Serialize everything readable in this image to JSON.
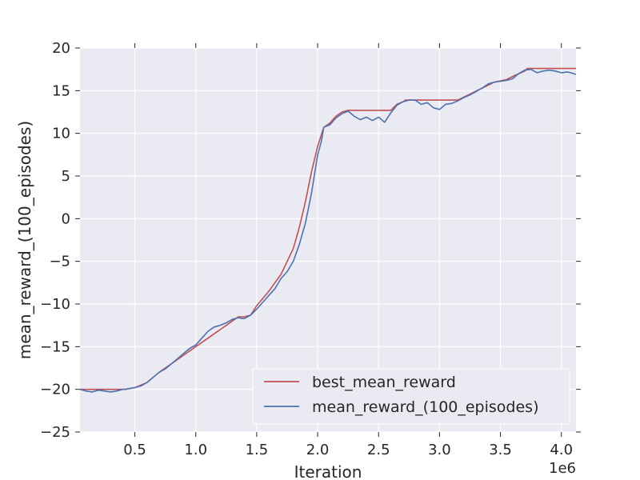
{
  "chart_data": {
    "type": "line",
    "xlabel": "Iteration",
    "ylabel": "mean_reward_(100_episodes)",
    "x_multiplier_label": "1e6",
    "xlim": [
      0.05,
      4.12
    ],
    "ylim": [
      -25,
      20
    ],
    "x_ticks": [
      0.5,
      1.0,
      1.5,
      2.0,
      2.5,
      3.0,
      3.5,
      4.0
    ],
    "x_tick_labels": [
      "0.5",
      "1.0",
      "1.5",
      "2.0",
      "2.5",
      "3.0",
      "3.5",
      "4.0"
    ],
    "y_ticks": [
      -25,
      -20,
      -15,
      -10,
      -5,
      0,
      5,
      10,
      15,
      20
    ],
    "y_tick_labels": [
      "−25",
      "−20",
      "−15",
      "−10",
      "−5",
      "0",
      "5",
      "10",
      "15",
      "20"
    ],
    "grid": true,
    "legend_position": "lower-right",
    "series": [
      {
        "name": "best_mean_reward",
        "color": "#c44e52",
        "x": [
          0.05,
          0.3,
          0.3,
          0.42,
          0.42,
          0.5,
          0.6,
          0.7,
          0.8,
          0.9,
          1.0,
          1.1,
          1.2,
          1.3,
          1.35,
          1.4,
          1.45,
          1.5,
          1.6,
          1.7,
          1.8,
          1.85,
          1.9,
          1.95,
          2.0,
          2.05,
          2.1,
          2.15,
          2.2,
          2.25,
          2.6,
          2.65,
          2.7,
          2.72,
          3.15,
          3.18,
          3.25,
          3.35,
          3.45,
          3.55,
          3.62,
          3.7,
          3.72,
          4.12
        ],
        "y": [
          -20.0,
          -20.0,
          -20.0,
          -20.0,
          -20.0,
          -19.8,
          -19.2,
          -18.0,
          -17.0,
          -16.0,
          -15.0,
          -14.0,
          -13.0,
          -12.0,
          -11.5,
          -11.5,
          -11.3,
          -10.2,
          -8.5,
          -6.5,
          -3.5,
          -1.0,
          2.0,
          5.5,
          8.5,
          10.7,
          11.2,
          12.0,
          12.5,
          12.7,
          12.7,
          13.4,
          13.7,
          13.9,
          13.9,
          14.1,
          14.6,
          15.3,
          16.0,
          16.3,
          16.8,
          17.3,
          17.6,
          17.6
        ]
      },
      {
        "name": "mean_reward_(100_episodes)",
        "color": "#4c72b0",
        "x": [
          0.05,
          0.1,
          0.15,
          0.2,
          0.25,
          0.3,
          0.35,
          0.4,
          0.42,
          0.5,
          0.55,
          0.6,
          0.65,
          0.7,
          0.75,
          0.8,
          0.85,
          0.9,
          0.95,
          1.0,
          1.05,
          1.1,
          1.15,
          1.2,
          1.25,
          1.3,
          1.35,
          1.38,
          1.4,
          1.45,
          1.5,
          1.55,
          1.6,
          1.65,
          1.7,
          1.75,
          1.8,
          1.85,
          1.9,
          1.95,
          2.0,
          2.03,
          2.05,
          2.1,
          2.15,
          2.2,
          2.25,
          2.3,
          2.35,
          2.4,
          2.45,
          2.5,
          2.55,
          2.6,
          2.65,
          2.7,
          2.75,
          2.8,
          2.85,
          2.9,
          2.95,
          3.0,
          3.05,
          3.1,
          3.15,
          3.2,
          3.25,
          3.3,
          3.35,
          3.4,
          3.45,
          3.5,
          3.55,
          3.6,
          3.65,
          3.7,
          3.75,
          3.8,
          3.85,
          3.9,
          3.95,
          4.0,
          4.05,
          4.1,
          4.12
        ],
        "y": [
          -20.0,
          -20.2,
          -20.3,
          -20.1,
          -20.2,
          -20.3,
          -20.2,
          -20.0,
          -20.0,
          -19.8,
          -19.6,
          -19.2,
          -18.6,
          -18.0,
          -17.6,
          -17.0,
          -16.4,
          -15.8,
          -15.2,
          -14.8,
          -14.0,
          -13.2,
          -12.7,
          -12.5,
          -12.2,
          -11.8,
          -11.6,
          -11.7,
          -11.7,
          -11.3,
          -10.6,
          -9.8,
          -9.0,
          -8.2,
          -7.0,
          -6.2,
          -5.0,
          -3.0,
          -0.5,
          3.0,
          7.5,
          9.0,
          10.7,
          11.0,
          11.8,
          12.3,
          12.6,
          12.0,
          11.6,
          11.9,
          11.5,
          11.9,
          11.3,
          12.4,
          13.3,
          13.7,
          13.9,
          13.9,
          13.4,
          13.6,
          13.0,
          12.8,
          13.4,
          13.5,
          13.8,
          14.2,
          14.5,
          14.9,
          15.3,
          15.8,
          16.0,
          16.1,
          16.2,
          16.4,
          17.0,
          17.4,
          17.5,
          17.1,
          17.3,
          17.4,
          17.3,
          17.1,
          17.2,
          17.0,
          16.9
        ]
      }
    ]
  }
}
